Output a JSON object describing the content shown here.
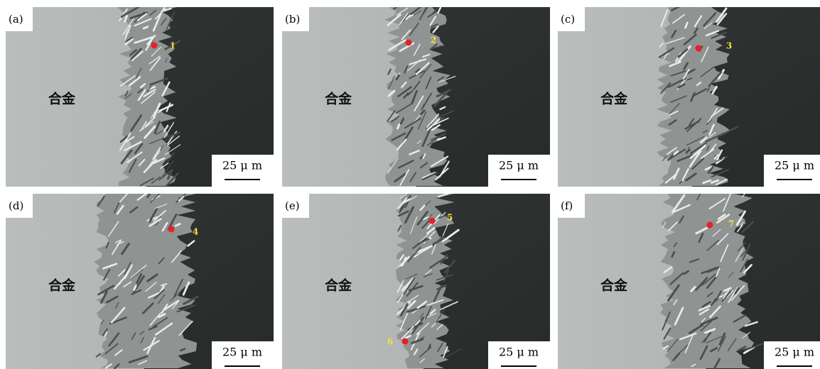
{
  "panels": [
    {
      "label": "(a)",
      "region": "合金",
      "points": [
        "1"
      ],
      "scale": "25 μ m"
    },
    {
      "label": "(b)",
      "region": "合金",
      "points": [
        "2"
      ],
      "scale": "25 μ m"
    },
    {
      "label": "(c)",
      "region": "合金",
      "points": [
        "3"
      ],
      "scale": "25 μ m"
    },
    {
      "label": "(d)",
      "region": "合金",
      "points": [
        "4"
      ],
      "scale": "25 μ m"
    },
    {
      "label": "(e)",
      "region": "合金",
      "points": [
        "5",
        "6"
      ],
      "scale": "25 μ m"
    },
    {
      "label": "(f)",
      "region": "合金",
      "points": [
        "7"
      ],
      "scale": "25 μ m"
    }
  ]
}
